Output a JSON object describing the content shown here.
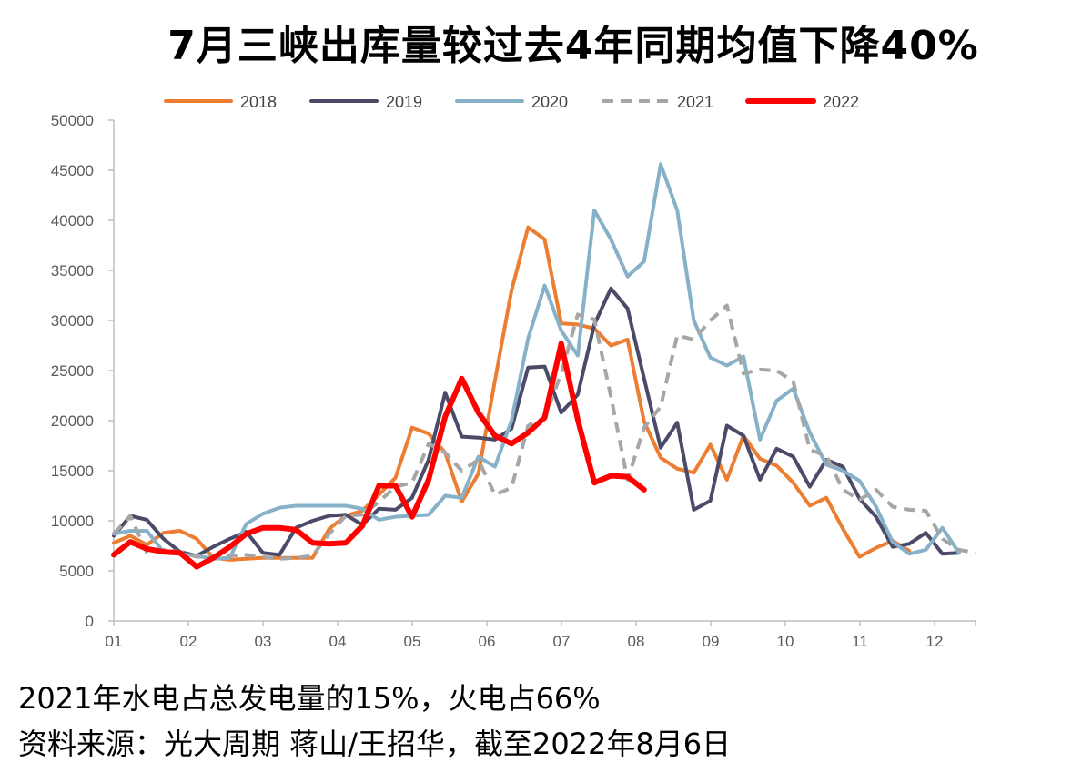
{
  "title": "7月三峡出库量较过去4年同期均值下降40%",
  "notes": {
    "line1": "2021年水电占总发电量的15%，火电占66%",
    "line2": "资料来源：光大周期 蒋山/王招华，截至2022年8月6日"
  },
  "chart_data": {
    "type": "line",
    "x_ticks": [
      "01",
      "02",
      "03",
      "04",
      "05",
      "06",
      "07",
      "08",
      "09",
      "10",
      "11",
      "12"
    ],
    "y_ticks": [
      "0",
      "5000",
      "10000",
      "15000",
      "20000",
      "25000",
      "30000",
      "35000",
      "40000",
      "45000",
      "50000"
    ],
    "ylim": [
      0,
      50000
    ],
    "grid": false,
    "legend_position": "top",
    "series": [
      {
        "name": "2018",
        "color": "#ED7D31",
        "dash": false,
        "width": 4,
        "values": [
          7800,
          8500,
          7600,
          8800,
          9000,
          8200,
          6300,
          6100,
          6200,
          6300,
          6300,
          6300,
          6300,
          9200,
          10500,
          11000,
          12600,
          14300,
          19300,
          18700,
          16800,
          11900,
          14700,
          24000,
          33000,
          39300,
          38100,
          29700,
          29600,
          29200,
          27500,
          28100,
          19900,
          16300,
          15200,
          14800,
          17600,
          14100,
          18500,
          16200,
          15500,
          13800,
          11500,
          12300,
          9200,
          6400,
          7300,
          8000,
          7000
        ]
      },
      {
        "name": "2019",
        "color": "#4B4A69",
        "dash": false,
        "width": 4,
        "values": [
          8500,
          10500,
          10100,
          8200,
          6900,
          6500,
          7400,
          8200,
          8900,
          6800,
          6600,
          9300,
          10000,
          10500,
          10600,
          9600,
          11200,
          11100,
          12300,
          16100,
          22800,
          18400,
          18300,
          18100,
          19200,
          25300,
          25400,
          20800,
          22600,
          29600,
          33200,
          31200,
          24200,
          17300,
          19800,
          11100,
          12000,
          19500,
          18500,
          14100,
          17200,
          16400,
          13400,
          16100,
          15400,
          12200,
          10400,
          7400,
          7700,
          8800,
          6700,
          6800
        ]
      },
      {
        "name": "2020",
        "color": "#86B1C9",
        "dash": false,
        "width": 4,
        "values": [
          8700,
          9000,
          9000,
          6900,
          6700,
          6500,
          6200,
          6300,
          9700,
          10700,
          11300,
          11500,
          11500,
          11500,
          11500,
          11200,
          10100,
          10400,
          10500,
          10600,
          12500,
          12300,
          16400,
          15400,
          20000,
          28200,
          33500,
          29000,
          26500,
          41000,
          38100,
          34400,
          35900,
          45600,
          41000,
          30000,
          26300,
          25500,
          26400,
          18100,
          22000,
          23200,
          18800,
          15600,
          15000,
          14000,
          11400,
          7900,
          6700,
          7100,
          9300,
          6800
        ]
      },
      {
        "name": "2021",
        "color": "#A6A6A6",
        "dash": true,
        "width": 4,
        "values": [
          8700,
          10500,
          6800,
          7100,
          6900,
          6400,
          6400,
          6500,
          6600,
          6400,
          6200,
          6300,
          6500,
          8700,
          10500,
          10600,
          11900,
          13400,
          13800,
          17700,
          16800,
          15000,
          16100,
          12600,
          13300,
          19500,
          20300,
          24700,
          30600,
          30100,
          22400,
          14100,
          19300,
          21400,
          28500,
          28100,
          30000,
          31500,
          24700,
          25100,
          25000,
          23900,
          17100,
          16500,
          13100,
          12100,
          13100,
          11400,
          11100,
          11000,
          8200,
          7100,
          6800
        ]
      },
      {
        "name": "2022",
        "color": "#FF0000",
        "dash": false,
        "width": 6,
        "values": [
          6600,
          7900,
          7200,
          6900,
          6800,
          5400,
          6300,
          7400,
          8700,
          9300,
          9300,
          9100,
          7800,
          7700,
          7800,
          9500,
          13500,
          13500,
          10400,
          14100,
          20400,
          24200,
          20800,
          18500,
          17700,
          18800,
          20300,
          27700,
          20100,
          13800,
          14500,
          14400,
          13100
        ]
      }
    ]
  }
}
